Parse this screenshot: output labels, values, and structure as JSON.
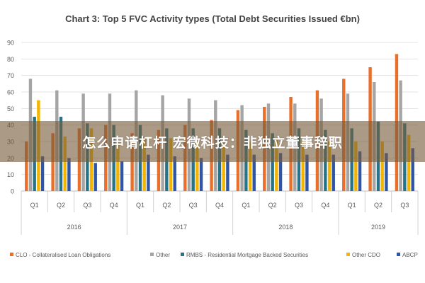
{
  "chart_data": {
    "type": "bar",
    "title": "Chart 3: Top 5 FVC Activity types (Total Debt Securities Issued €bn)",
    "ylim": [
      0,
      90
    ],
    "yticks": [
      0,
      10,
      20,
      30,
      40,
      50,
      60,
      70,
      80,
      90
    ],
    "grid": true,
    "legend_position": "bottom",
    "categories": [
      "Q1",
      "Q2",
      "Q3",
      "Q4",
      "Q1",
      "Q2",
      "Q3",
      "Q4",
      "Q1",
      "Q2",
      "Q3",
      "Q4",
      "Q1",
      "Q2",
      "Q3"
    ],
    "year_groups": [
      {
        "label": "2016",
        "count": 4
      },
      {
        "label": "2017",
        "count": 4
      },
      {
        "label": "2018",
        "count": 4
      },
      {
        "label": "2019",
        "count": 3
      }
    ],
    "series": [
      {
        "name": "CLO - Collateralised Loan Obligations",
        "color": "#e8702a",
        "values": [
          30,
          35,
          38,
          40,
          35,
          37,
          40,
          43,
          49,
          51,
          57,
          61,
          68,
          75,
          83
        ]
      },
      {
        "name": "Other",
        "color": "#a5a5a5",
        "values": [
          68,
          61,
          59,
          59,
          61,
          58,
          56,
          55,
          52,
          53,
          53,
          56,
          59,
          66,
          67
        ]
      },
      {
        "name": "RMBS - Residential Mortgage Backed Securities",
        "color": "#26738a",
        "values": [
          45,
          45,
          41,
          40,
          40,
          38,
          38,
          38,
          37,
          35,
          38,
          37,
          38,
          42,
          41
        ]
      },
      {
        "name": "Other CDO",
        "color": "#f4b400",
        "values": [
          55,
          33,
          38,
          30,
          33,
          32,
          30,
          30,
          30,
          31,
          30,
          30,
          30,
          30,
          34
        ]
      },
      {
        "name": "ABCP",
        "color": "#2f55a4",
        "values": [
          21,
          20,
          17,
          18,
          22,
          21,
          20,
          22,
          22,
          23,
          22,
          22,
          24,
          23,
          26
        ]
      }
    ]
  },
  "overlay": {
    "banner_text": "怎么申请杠杆 宏微科技：非独立董事辞职"
  }
}
